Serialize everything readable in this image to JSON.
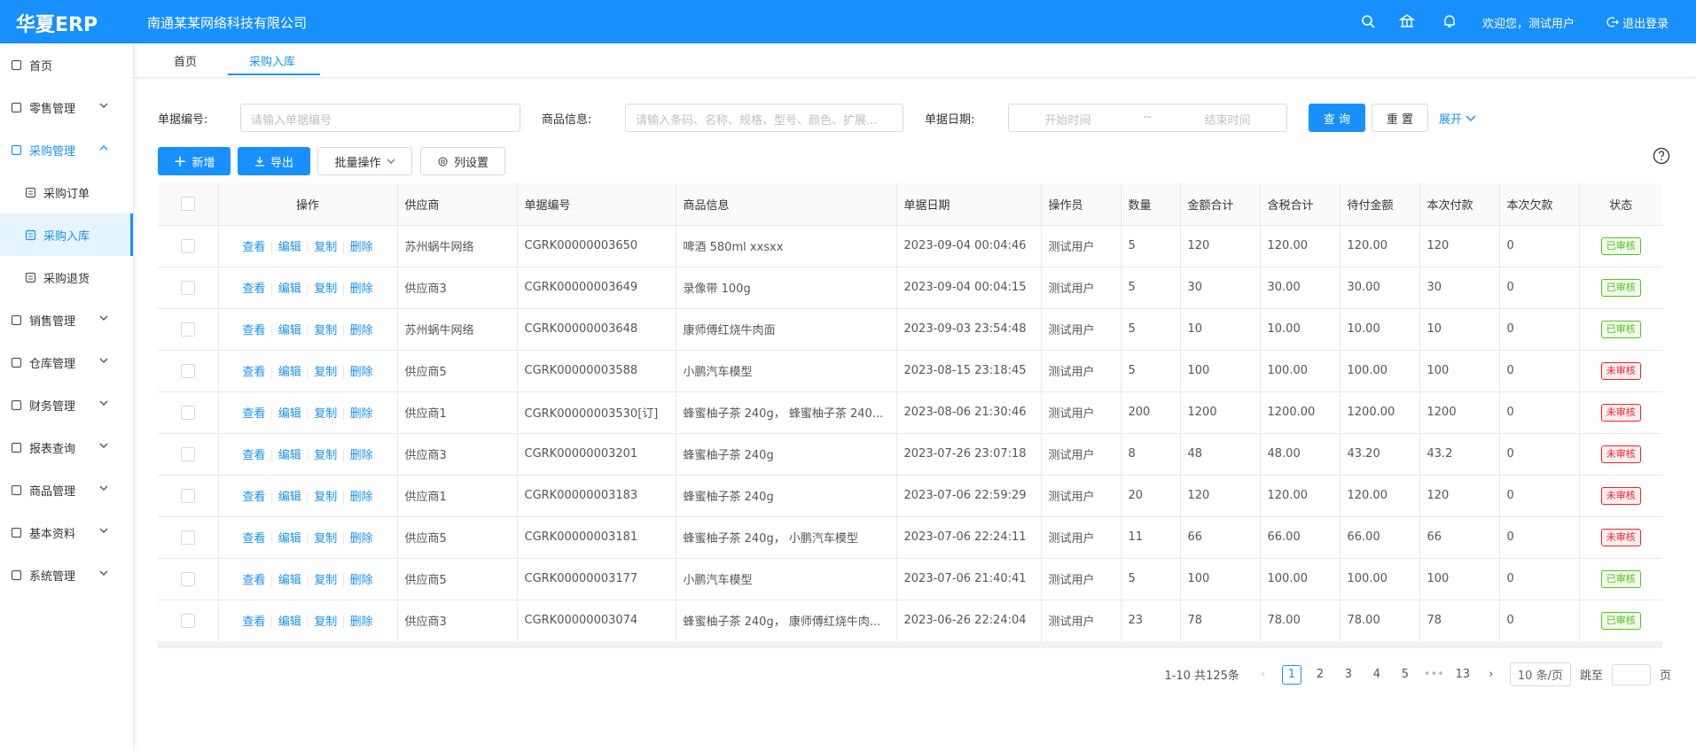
{
  "header": {
    "logo": "华夏ERP",
    "company": "南通某某网络科技有限公司",
    "welcome": "欢迎您，测试用户",
    "logout": "退出登录"
  },
  "sidebar": [
    "首页",
    "零售管理",
    "采购管理",
    "采购订单",
    "采购入库",
    "采购退货",
    "销售管理",
    "仓库管理",
    "财务管理",
    "报表查询",
    "商品管理",
    "基本资料",
    "系统管理"
  ],
  "tabs": [
    "首页",
    "采购入库"
  ],
  "search": {
    "number_label": "单据编号:",
    "number_placeholder": "请输入单据编号",
    "goods_label": "商品信息:",
    "goods_placeholder": "请输入条码、名称、规格、型号、颜色、扩展...",
    "date_label": "单据日期:",
    "date_start": "开始时间",
    "date_sep": "~",
    "date_end": "结束时间",
    "query": "查 询",
    "reset": "重 置",
    "expand": "展开"
  },
  "toolbar": {
    "add": "新增",
    "export": "导出",
    "batch": "批量操作",
    "columns": "列设置"
  },
  "table": {
    "columns": [
      "操作",
      "供应商",
      "单据编号",
      "商品信息",
      "单据日期",
      "操作员",
      "数量",
      "金额合计",
      "含税合计",
      "待付金额",
      "本次付款",
      "本次欠款",
      "状态"
    ],
    "actions": [
      "查看",
      "编辑",
      "复制",
      "删除"
    ],
    "rows": [
      [
        "苏州蜗牛网络",
        "CGRK00000003650",
        "啤酒 580ml xxsxx",
        "2023-09-04 00:04:46",
        "测试用户",
        5,
        120,
        "120.00",
        "120.00",
        120,
        0,
        {
          "text": "已审核",
          "color": "#52c41a"
        }
      ],
      [
        "供应商3",
        "CGRK00000003649",
        "录像带 100g",
        "2023-09-04 00:04:15",
        "测试用户",
        5,
        30,
        "30.00",
        "30.00",
        30,
        0,
        {
          "text": "已审核",
          "color": "#52c41a"
        }
      ],
      [
        "苏州蜗牛网络",
        "CGRK00000003648",
        "康师傅红烧牛肉面",
        "2023-09-03 23:54:48",
        "测试用户",
        5,
        10,
        "10.00",
        "10.00",
        10,
        0,
        {
          "text": "已审核",
          "color": "#52c41a"
        }
      ],
      [
        "供应商5",
        "CGRK00000003588",
        "小鹏汽车模型",
        "2023-08-15 23:18:45",
        "测试用户",
        5,
        100,
        "100.00",
        "100.00",
        100,
        0,
        {
          "text": "未审核",
          "color": "#f5222d"
        }
      ],
      [
        "供应商1",
        "CGRK00000003530[订]",
        "蜂蜜柚子茶 240g， 蜂蜜柚子茶 240...",
        "2023-08-06 21:30:46",
        "测试用户",
        200,
        1200,
        "1200.00",
        "1200.00",
        1200,
        0,
        {
          "text": "未审核",
          "color": "#f5222d"
        }
      ],
      [
        "供应商3",
        "CGRK00000003201",
        "蜂蜜柚子茶 240g",
        "2023-07-26 23:07:18",
        "测试用户",
        8,
        48,
        "48.00",
        "43.20",
        43.2,
        0,
        {
          "text": "未审核",
          "color": "#f5222d"
        }
      ],
      [
        "供应商1",
        "CGRK00000003183",
        "蜂蜜柚子茶 240g",
        "2023-07-06 22:59:29",
        "测试用户",
        20,
        120,
        "120.00",
        "120.00",
        120,
        0,
        {
          "text": "未审核",
          "color": "#f5222d"
        }
      ],
      [
        "供应商5",
        "CGRK00000003181",
        "蜂蜜柚子茶 240g， 小鹏汽车模型",
        "2023-07-06 22:24:11",
        "测试用户",
        11,
        66,
        "66.00",
        "66.00",
        66,
        0,
        {
          "text": "未审核",
          "color": "#f5222d"
        }
      ],
      [
        "供应商5",
        "CGRK00000003177",
        "小鹏汽车模型",
        "2023-07-06 21:40:41",
        "测试用户",
        5,
        100,
        "100.00",
        "100.00",
        100,
        0,
        {
          "text": "已审核",
          "color": "#52c41a"
        }
      ],
      [
        "供应商3",
        "CGRK00000003074",
        "蜂蜜柚子茶 240g， 康师傅红烧牛肉...",
        "2023-06-26 22:24:04",
        "测试用户",
        23,
        78,
        "78.00",
        "78.00",
        78,
        0,
        {
          "text": "已审核",
          "color": "#52c41a"
        }
      ]
    ]
  },
  "pagination": {
    "summary": "1-10 共125条",
    "pages": [
      1,
      2,
      3,
      4,
      5,
      "•••",
      13
    ],
    "current": 1,
    "size": "10 条/页",
    "jump": "跳至",
    "unit": "页"
  }
}
